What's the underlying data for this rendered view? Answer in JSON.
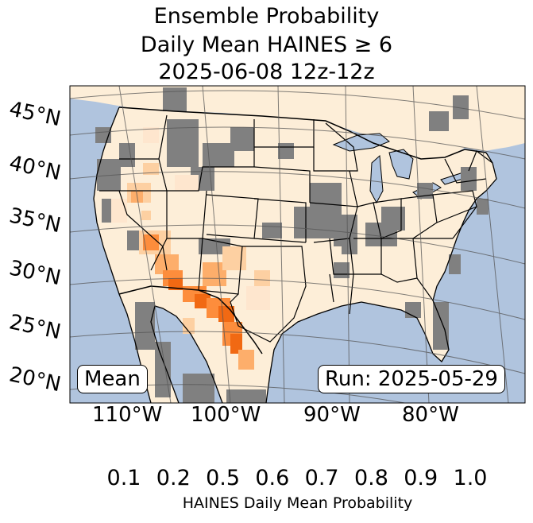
{
  "title": {
    "line1": "Ensemble Probability",
    "line2": "Daily Mean HAINES ≥ 6",
    "line3": "2025-06-08 12z-12z"
  },
  "map": {
    "ocean_color": "#b0c4de",
    "land_base_color": "#fdeed8",
    "missing_color": "#808080",
    "lake_color": "#b0c4de",
    "lat_labels": [
      "45°N",
      "40°N",
      "35°N",
      "30°N",
      "25°N",
      "20°N"
    ],
    "lon_labels": [
      "110°W",
      "100°W",
      "90°W",
      "80°W"
    ],
    "mean_label": "Mean",
    "run_label": "Run: 2025-05-29"
  },
  "colorbar": {
    "ticks": [
      "0.1",
      "0.2",
      "0.5",
      "0.6",
      "0.7",
      "0.8",
      "0.9",
      "1.0"
    ],
    "colors": [
      "#fff5eb",
      "#fee6ce",
      "#fdd0a2",
      "#fdae6b",
      "#fd8d3c",
      "#f16913",
      "#d94801"
    ],
    "under_color": "#808080",
    "over_color": "#7f2704",
    "label": "HAINES Daily Mean Probability"
  }
}
